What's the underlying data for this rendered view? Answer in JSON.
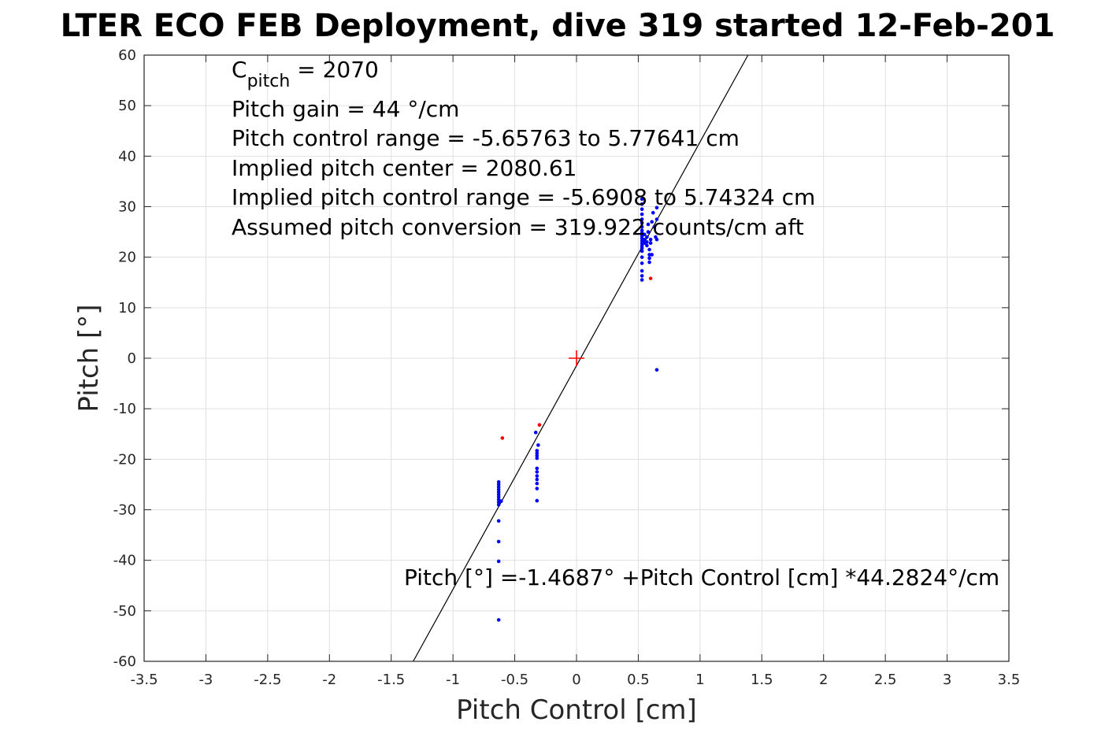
{
  "chart_data": {
    "type": "scatter",
    "title": "LTER ECO FEB Deployment, dive 319 started 12-Feb-201",
    "xlabel": "Pitch Control [cm]",
    "ylabel": "Pitch [°]",
    "xlim": [
      -3.5,
      3.5
    ],
    "ylim": [
      -60,
      60
    ],
    "xticks": [
      -3.5,
      -3,
      -2.5,
      -2,
      -1.5,
      -1,
      -0.5,
      0,
      0.5,
      1,
      1.5,
      2,
      2.5,
      3,
      3.5
    ],
    "yticks": [
      -60,
      -50,
      -40,
      -30,
      -20,
      -10,
      0,
      10,
      20,
      30,
      40,
      50,
      60
    ],
    "grid": true,
    "colors": {
      "blue": "#0000ff",
      "red": "#ff0000",
      "fit": "#000000"
    },
    "fit_line": {
      "intercept": -1.4687,
      "slope": 44.2824
    },
    "center_marker": {
      "x": 0,
      "y": 0,
      "color": "#ff0000",
      "shape": "plus"
    },
    "series": [
      {
        "color": "#0000ff",
        "points": [
          [
            0.53,
            31.5
          ],
          [
            0.53,
            30.5
          ],
          [
            0.53,
            29.5
          ],
          [
            0.53,
            28.5
          ],
          [
            0.53,
            27.5
          ],
          [
            0.53,
            26.8
          ],
          [
            0.53,
            26.0
          ],
          [
            0.53,
            25.3
          ],
          [
            0.53,
            24.8
          ],
          [
            0.53,
            24.2
          ],
          [
            0.53,
            23.7
          ],
          [
            0.53,
            23.2
          ],
          [
            0.53,
            22.7
          ],
          [
            0.53,
            22.2
          ],
          [
            0.53,
            21.8
          ],
          [
            0.53,
            21.2
          ],
          [
            0.53,
            20.0
          ],
          [
            0.53,
            18.8
          ],
          [
            0.53,
            17.3
          ],
          [
            0.53,
            16.3
          ],
          [
            0.53,
            15.5
          ],
          [
            0.55,
            24.5
          ],
          [
            0.55,
            23.5
          ],
          [
            0.55,
            22.8
          ],
          [
            0.57,
            24.0
          ],
          [
            0.57,
            23.0
          ],
          [
            0.57,
            22.3
          ],
          [
            0.58,
            25.0
          ],
          [
            0.58,
            26.5
          ],
          [
            0.59,
            21.5
          ],
          [
            0.59,
            20.5
          ],
          [
            0.59,
            19.8
          ],
          [
            0.59,
            19.0
          ],
          [
            0.6,
            23.5
          ],
          [
            0.6,
            22.8
          ],
          [
            0.61,
            27.0
          ],
          [
            0.61,
            20.5
          ],
          [
            0.62,
            28.8
          ],
          [
            0.63,
            26.0
          ],
          [
            0.64,
            24.0
          ],
          [
            0.65,
            29.8
          ],
          [
            0.65,
            27.5
          ],
          [
            0.65,
            23.5
          ],
          [
            0.65,
            -2.3
          ],
          [
            -0.63,
            -24.5
          ],
          [
            -0.63,
            -25.0
          ],
          [
            -0.63,
            -25.5
          ],
          [
            -0.63,
            -26.0
          ],
          [
            -0.63,
            -26.5
          ],
          [
            -0.63,
            -27.0
          ],
          [
            -0.63,
            -27.5
          ],
          [
            -0.63,
            -28.0
          ],
          [
            -0.63,
            -28.5
          ],
          [
            -0.63,
            -29.0
          ],
          [
            -0.63,
            -32.2
          ],
          [
            -0.63,
            -36.3
          ],
          [
            -0.63,
            -40.2
          ],
          [
            -0.63,
            -51.8
          ],
          [
            -0.61,
            -28.3
          ],
          [
            -0.33,
            -14.7
          ],
          [
            -0.31,
            -17.2
          ],
          [
            -0.32,
            -18.3
          ],
          [
            -0.32,
            -18.8
          ],
          [
            -0.32,
            -19.3
          ],
          [
            -0.32,
            -19.8
          ],
          [
            -0.32,
            -21.8
          ],
          [
            -0.32,
            -22.5
          ],
          [
            -0.32,
            -23.3
          ],
          [
            -0.32,
            -24.0
          ],
          [
            -0.32,
            -24.8
          ],
          [
            -0.32,
            -25.8
          ],
          [
            -0.32,
            -28.2
          ]
        ]
      },
      {
        "color": "#ff0000",
        "points": [
          [
            0.6,
            15.8
          ],
          [
            -0.6,
            -15.8
          ],
          [
            -0.3,
            -13.2
          ]
        ]
      }
    ]
  },
  "annotations": {
    "cpitch_base": "C",
    "cpitch_sub": "pitch",
    "cpitch_value": " = 2070",
    "pitch_gain": "Pitch gain = 44 °/cm",
    "control_range": "Pitch control range = -5.65763 to 5.77641 cm",
    "implied_center": "Implied pitch center = 2080.61",
    "implied_range": "Implied pitch control range = -5.6908 to 5.74324 cm",
    "conversion": "Assumed pitch conversion = 319.922 counts/cm aft",
    "fit_equation": "Pitch [°] =-1.4687° +Pitch Control [cm] *44.2824°/cm"
  }
}
